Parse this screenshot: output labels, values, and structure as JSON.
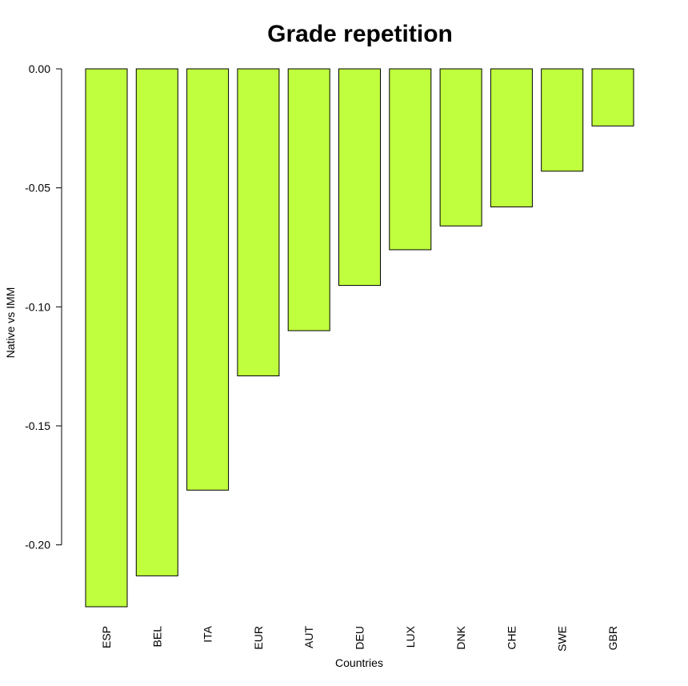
{
  "chart_data": {
    "type": "bar",
    "title": "Grade repetition",
    "xlabel": "Countries",
    "ylabel": "Native vs IMM",
    "categories": [
      "ESP",
      "BEL",
      "ITA",
      "EUR",
      "AUT",
      "DEU",
      "LUX",
      "DNK",
      "CHE",
      "SWE",
      "GBR"
    ],
    "values": [
      -0.226,
      -0.213,
      -0.177,
      -0.129,
      -0.11,
      -0.091,
      -0.076,
      -0.066,
      -0.058,
      -0.043,
      -0.024
    ],
    "ylim": [
      -0.226,
      0.0
    ],
    "yticks": [
      0.0,
      -0.05,
      -0.1,
      -0.15,
      -0.2
    ],
    "ytick_labels": [
      "0.00",
      "-0.05",
      "-0.10",
      "-0.15",
      "-0.20"
    ],
    "bar_color": "#C0FF3E",
    "bar_edge_color": "#000000",
    "grid": false,
    "legend": "none"
  }
}
